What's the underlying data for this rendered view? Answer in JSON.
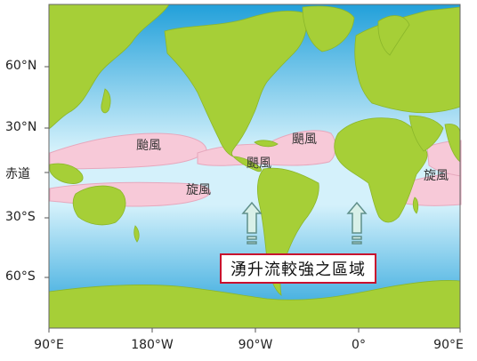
{
  "map": {
    "latitude_labels": [
      "60°N",
      "30°N",
      "赤道",
      "30°S",
      "60°S"
    ],
    "longitude_labels": [
      "90°E",
      "180°W",
      "90°W",
      "0°",
      "90°E"
    ],
    "cyclone_zone_labels": [
      "颱風",
      "颶風",
      "颶風",
      "旋風",
      "旋風"
    ],
    "upwelling_label": "湧升流較強之區域",
    "colors": {
      "ocean_top": "#2aa6dc",
      "ocean_mid": "#cdeefa",
      "land": "#a6cf37",
      "cyclone_zone": "#f7c9d8",
      "arrow_fill": "#d8f0e8",
      "callout_border": "#c8102e"
    },
    "icons": [
      "upwelling-arrow-icon",
      "upwelling-arrow-icon"
    ]
  }
}
